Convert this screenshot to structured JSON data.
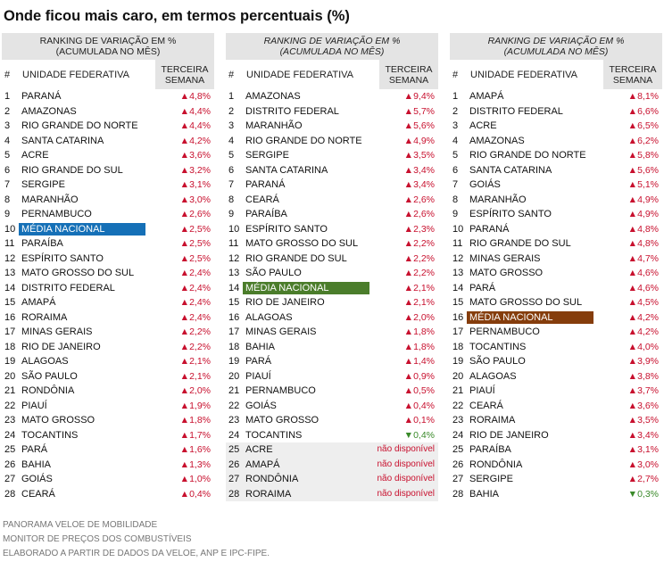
{
  "title": "Onde ficou mais caro, em termos percentuais (%)",
  "highlight_colors": [
    "#1570b7",
    "#4b7d2b",
    "#853d0c"
  ],
  "tables": [
    {
      "header_line1": "RANKING DE VARIAÇÃO EM %",
      "header_line2": "(ACUMULADA NO MÊS)",
      "col_num": "#",
      "col_uf": "UNIDADE FEDERATIVA",
      "col_val_line1": "TERCEIRA",
      "col_val_line2": "SEMANA",
      "rows": [
        {
          "n": "1",
          "uf": "PARANÁ",
          "v": "▲4,8%",
          "d": "up"
        },
        {
          "n": "2",
          "uf": "AMAZONAS",
          "v": "▲4,4%",
          "d": "up"
        },
        {
          "n": "3",
          "uf": "RIO GRANDE DO NORTE",
          "v": "▲4,4%",
          "d": "up"
        },
        {
          "n": "4",
          "uf": "SANTA CATARINA",
          "v": "▲4,2%",
          "d": "up"
        },
        {
          "n": "5",
          "uf": "ACRE",
          "v": "▲3,6%",
          "d": "up"
        },
        {
          "n": "6",
          "uf": "RIO GRANDE DO SUL",
          "v": "▲3,2%",
          "d": "up"
        },
        {
          "n": "7",
          "uf": "SERGIPE",
          "v": "▲3,1%",
          "d": "up"
        },
        {
          "n": "8",
          "uf": "MARANHÃO",
          "v": "▲3,0%",
          "d": "up"
        },
        {
          "n": "9",
          "uf": "PERNAMBUCO",
          "v": "▲2,6%",
          "d": "up"
        },
        {
          "n": "10",
          "uf": "MÉDIA NACIONAL",
          "v": "▲2,5%",
          "d": "up",
          "hl": true
        },
        {
          "n": "11",
          "uf": "PARAÍBA",
          "v": "▲2,5%",
          "d": "up"
        },
        {
          "n": "12",
          "uf": "ESPÍRITO SANTO",
          "v": "▲2,5%",
          "d": "up"
        },
        {
          "n": "13",
          "uf": "MATO GROSSO DO SUL",
          "v": "▲2,4%",
          "d": "up"
        },
        {
          "n": "14",
          "uf": "DISTRITO FEDERAL",
          "v": "▲2,4%",
          "d": "up"
        },
        {
          "n": "15",
          "uf": "AMAPÁ",
          "v": "▲2,4%",
          "d": "up"
        },
        {
          "n": "16",
          "uf": "RORAIMA",
          "v": "▲2,4%",
          "d": "up"
        },
        {
          "n": "17",
          "uf": "MINAS GERAIS",
          "v": "▲2,2%",
          "d": "up"
        },
        {
          "n": "18",
          "uf": "RIO DE JANEIRO",
          "v": "▲2,2%",
          "d": "up"
        },
        {
          "n": "19",
          "uf": "ALAGOAS",
          "v": "▲2,1%",
          "d": "up"
        },
        {
          "n": "20",
          "uf": "SÃO PAULO",
          "v": "▲2,1%",
          "d": "up"
        },
        {
          "n": "21",
          "uf": "RONDÔNIA",
          "v": "▲2,0%",
          "d": "up"
        },
        {
          "n": "22",
          "uf": "PIAUÍ",
          "v": "▲1,9%",
          "d": "up"
        },
        {
          "n": "23",
          "uf": "MATO GROSSO",
          "v": "▲1,8%",
          "d": "up"
        },
        {
          "n": "24",
          "uf": "TOCANTINS",
          "v": "▲1,7%",
          "d": "up"
        },
        {
          "n": "25",
          "uf": "PARÁ",
          "v": "▲1,6%",
          "d": "up"
        },
        {
          "n": "26",
          "uf": "BAHIA",
          "v": "▲1,3%",
          "d": "up"
        },
        {
          "n": "27",
          "uf": "GOIÁS",
          "v": "▲1,0%",
          "d": "up"
        },
        {
          "n": "28",
          "uf": "CEARÁ",
          "v": "▲0,4%",
          "d": "up"
        }
      ]
    },
    {
      "header_line1": "RANKING DE VARIAÇÃO EM %",
      "header_line2": "(ACUMULADA NO MÊS)",
      "col_num": "#",
      "col_uf": "UNIDADE FEDERATIVA",
      "col_val_line1": "TERCEIRA",
      "col_val_line2": "SEMANA",
      "rows": [
        {
          "n": "1",
          "uf": "AMAZONAS",
          "v": "▲9,4%",
          "d": "up"
        },
        {
          "n": "2",
          "uf": "DISTRITO FEDERAL",
          "v": "▲5,7%",
          "d": "up"
        },
        {
          "n": "3",
          "uf": "MARANHÃO",
          "v": "▲5,6%",
          "d": "up"
        },
        {
          "n": "4",
          "uf": "RIO GRANDE DO NORTE",
          "v": "▲4,9%",
          "d": "up"
        },
        {
          "n": "5",
          "uf": "SERGIPE",
          "v": "▲3,5%",
          "d": "up"
        },
        {
          "n": "6",
          "uf": "SANTA CATARINA",
          "v": "▲3,4%",
          "d": "up"
        },
        {
          "n": "7",
          "uf": "PARANÁ",
          "v": "▲3,4%",
          "d": "up"
        },
        {
          "n": "8",
          "uf": "CEARÁ",
          "v": "▲2,6%",
          "d": "up"
        },
        {
          "n": "9",
          "uf": "PARAÍBA",
          "v": "▲2,6%",
          "d": "up"
        },
        {
          "n": "10",
          "uf": "ESPÍRITO SANTO",
          "v": "▲2,3%",
          "d": "up"
        },
        {
          "n": "11",
          "uf": "MATO GROSSO DO SUL",
          "v": "▲2,2%",
          "d": "up"
        },
        {
          "n": "12",
          "uf": "RIO GRANDE DO SUL",
          "v": "▲2,2%",
          "d": "up"
        },
        {
          "n": "13",
          "uf": "SÃO PAULO",
          "v": "▲2,2%",
          "d": "up"
        },
        {
          "n": "14",
          "uf": "MÉDIA NACIONAL",
          "v": "▲2,1%",
          "d": "up",
          "hl": true
        },
        {
          "n": "15",
          "uf": "RIO DE JANEIRO",
          "v": "▲2,1%",
          "d": "up"
        },
        {
          "n": "16",
          "uf": "ALAGOAS",
          "v": "▲2,0%",
          "d": "up"
        },
        {
          "n": "17",
          "uf": "MINAS GERAIS",
          "v": "▲1,8%",
          "d": "up"
        },
        {
          "n": "18",
          "uf": "BAHIA",
          "v": "▲1,8%",
          "d": "up"
        },
        {
          "n": "19",
          "uf": "PARÁ",
          "v": "▲1,4%",
          "d": "up"
        },
        {
          "n": "20",
          "uf": "PIAUÍ",
          "v": "▲0,9%",
          "d": "up"
        },
        {
          "n": "21",
          "uf": "PERNAMBUCO",
          "v": "▲0,5%",
          "d": "up"
        },
        {
          "n": "22",
          "uf": "GOIÁS",
          "v": "▲0,4%",
          "d": "up"
        },
        {
          "n": "23",
          "uf": "MATO GROSSO",
          "v": "▲0,1%",
          "d": "up"
        },
        {
          "n": "24",
          "uf": "TOCANTINS",
          "v": "▼0,4%",
          "d": "down"
        },
        {
          "n": "25",
          "uf": "ACRE",
          "v": "não disponível",
          "d": "nd",
          "gray": true
        },
        {
          "n": "26",
          "uf": "AMAPÁ",
          "v": "não disponível",
          "d": "nd",
          "gray": true
        },
        {
          "n": "27",
          "uf": "RONDÔNIA",
          "v": "não disponível",
          "d": "nd",
          "gray": true
        },
        {
          "n": "28",
          "uf": "RORAIMA",
          "v": "não disponível",
          "d": "nd",
          "gray": true
        }
      ]
    },
    {
      "header_line1": "RANKING DE VARIAÇÃO EM %",
      "header_line2": "(ACUMULADA NO MÊS)",
      "col_num": "#",
      "col_uf": "UNIDADE FEDERATIVA",
      "col_val_line1": "TERCEIRA",
      "col_val_line2": "SEMANA",
      "rows": [
        {
          "n": "1",
          "uf": "AMAPÁ",
          "v": "▲8,1%",
          "d": "up"
        },
        {
          "n": "2",
          "uf": "DISTRITO FEDERAL",
          "v": "▲6,6%",
          "d": "up"
        },
        {
          "n": "3",
          "uf": "ACRE",
          "v": "▲6,5%",
          "d": "up"
        },
        {
          "n": "4",
          "uf": "AMAZONAS",
          "v": "▲6,2%",
          "d": "up"
        },
        {
          "n": "5",
          "uf": "RIO GRANDE DO NORTE",
          "v": "▲5,8%",
          "d": "up"
        },
        {
          "n": "6",
          "uf": "SANTA CATARINA",
          "v": "▲5,6%",
          "d": "up"
        },
        {
          "n": "7",
          "uf": "GOIÁS",
          "v": "▲5,1%",
          "d": "up"
        },
        {
          "n": "8",
          "uf": "MARANHÃO",
          "v": "▲4,9%",
          "d": "up"
        },
        {
          "n": "9",
          "uf": "ESPÍRITO SANTO",
          "v": "▲4,9%",
          "d": "up"
        },
        {
          "n": "10",
          "uf": "PARANÁ",
          "v": "▲4,8%",
          "d": "up"
        },
        {
          "n": "11",
          "uf": "RIO GRANDE DO SUL",
          "v": "▲4,8%",
          "d": "up"
        },
        {
          "n": "12",
          "uf": "MINAS GERAIS",
          "v": "▲4,7%",
          "d": "up"
        },
        {
          "n": "13",
          "uf": "MATO GROSSO",
          "v": "▲4,6%",
          "d": "up"
        },
        {
          "n": "14",
          "uf": "PARÁ",
          "v": "▲4,6%",
          "d": "up"
        },
        {
          "n": "15",
          "uf": "MATO GROSSO DO SUL",
          "v": "▲4,5%",
          "d": "up"
        },
        {
          "n": "16",
          "uf": "MÉDIA NACIONAL",
          "v": "▲4,2%",
          "d": "up",
          "hl": true
        },
        {
          "n": "17",
          "uf": "PERNAMBUCO",
          "v": "▲4,2%",
          "d": "up"
        },
        {
          "n": "18",
          "uf": "TOCANTINS",
          "v": "▲4,0%",
          "d": "up"
        },
        {
          "n": "19",
          "uf": "SÃO PAULO",
          "v": "▲3,9%",
          "d": "up"
        },
        {
          "n": "20",
          "uf": "ALAGOAS",
          "v": "▲3,8%",
          "d": "up"
        },
        {
          "n": "21",
          "uf": "PIAUÍ",
          "v": "▲3,7%",
          "d": "up"
        },
        {
          "n": "22",
          "uf": "CEARÁ",
          "v": "▲3,6%",
          "d": "up"
        },
        {
          "n": "23",
          "uf": "RORAIMA",
          "v": "▲3,5%",
          "d": "up"
        },
        {
          "n": "24",
          "uf": "RIO DE JANEIRO",
          "v": "▲3,4%",
          "d": "up"
        },
        {
          "n": "25",
          "uf": "PARAÍBA",
          "v": "▲3,1%",
          "d": "up"
        },
        {
          "n": "26",
          "uf": "RONDÔNIA",
          "v": "▲3,0%",
          "d": "up"
        },
        {
          "n": "27",
          "uf": "SERGIPE",
          "v": "▲2,7%",
          "d": "up"
        },
        {
          "n": "28",
          "uf": "BAHIA",
          "v": "▼0,3%",
          "d": "down"
        }
      ]
    }
  ],
  "footer": {
    "line1": "PANORAMA VELOE DE MOBILIDADE",
    "line2": "MONITOR DE PREÇOS DOS COMBUSTÍVEIS",
    "line3": "ELABORADO A PARTIR DE DADOS DA VELOE, ANP E IPC-FIPE."
  },
  "chart_data": {
    "type": "table",
    "title": "Onde ficou mais caro, em termos percentuais (%)",
    "columns": [
      "#",
      "UNIDADE FEDERATIVA",
      "TERCEIRA SEMANA"
    ]
  }
}
